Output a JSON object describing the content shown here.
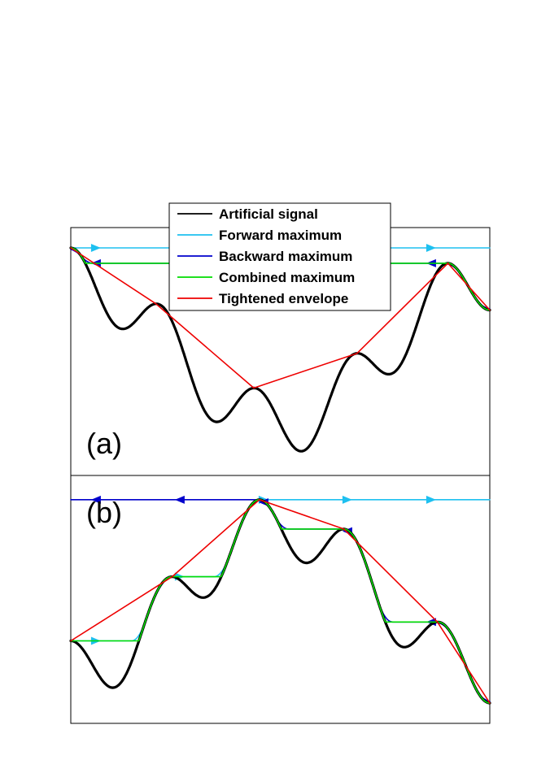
{
  "legend": {
    "placement": "top-center",
    "items": [
      {
        "key": "signal",
        "label": "Artificial signal",
        "color": "#000000"
      },
      {
        "key": "forward",
        "label": "Forward maximum",
        "color": "#1ec0f0"
      },
      {
        "key": "backward",
        "label": "Backward maximum",
        "color": "#0000cc"
      },
      {
        "key": "combined",
        "label": "Combined maximum",
        "color": "#00dd00"
      },
      {
        "key": "envelope",
        "label": "Tightened envelope",
        "color": "#ee0000"
      }
    ]
  },
  "panels": [
    {
      "key": "a",
      "label": "(a)",
      "shape": "valley"
    },
    {
      "key": "b",
      "label": "(b)",
      "shape": "hill"
    }
  ]
}
